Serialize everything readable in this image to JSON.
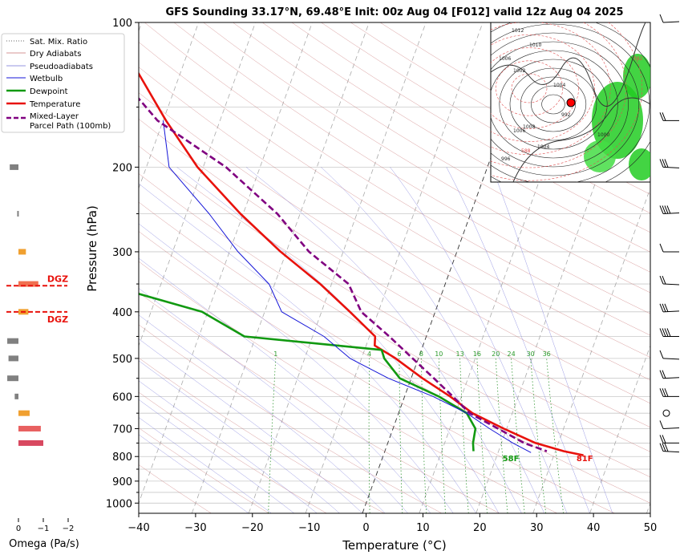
{
  "chart_data": {
    "type": "line",
    "title": "GFS Sounding 33.17°N, 69.48°E Init: 00z Aug 04 [F012] valid 12z Aug 04 2025",
    "xlabel": "Temperature (°C)",
    "ylabel": "Pressure (hPa)",
    "xlim": [
      -40,
      50
    ],
    "ylim": [
      1050,
      100
    ],
    "y_scale": "log",
    "x_ticks": [
      "−40",
      "−30",
      "−20",
      "−10",
      "0",
      "10",
      "20",
      "30",
      "40",
      "50"
    ],
    "y_ticks": [
      "100",
      "200",
      "300",
      "400",
      "500",
      "600",
      "700",
      "800",
      "900",
      "1000"
    ],
    "skew": true,
    "grid": true,
    "legend_position": "top-left",
    "legend": [
      "Sat. Mix. Ratio",
      "Dry Adiabats",
      "Pseudoadiabats",
      "Wetbulb",
      "Dewpoint",
      "Temperature",
      "Mixed-Layer\nParcel Path (100mb)"
    ],
    "mixing_ratio_labels": [
      "1",
      "4",
      "6",
      "8",
      "10",
      "13",
      "16",
      "20",
      "24",
      "30",
      "36"
    ],
    "series": [
      {
        "name": "Temperature",
        "color": "#e8120c",
        "points": [
          [
            100,
            -75.8
          ],
          [
            160,
            -59.5
          ],
          [
            200,
            -51
          ],
          [
            250,
            -40.5
          ],
          [
            300,
            -31
          ],
          [
            350,
            -22
          ],
          [
            400,
            -15
          ],
          [
            450,
            -9
          ],
          [
            470,
            -8.5
          ],
          [
            500,
            -4
          ],
          [
            550,
            2
          ],
          [
            600,
            8
          ],
          [
            650,
            13
          ],
          [
            700,
            19.5
          ],
          [
            750,
            26
          ],
          [
            780,
            31.5
          ],
          [
            795,
            35.2
          ]
        ]
      },
      {
        "name": "Dewpoint",
        "color": "#119911",
        "points": [
          [
            100,
            -87
          ],
          [
            160,
            -82
          ],
          [
            200,
            -70
          ],
          [
            250,
            -67
          ],
          [
            300,
            -57
          ],
          [
            350,
            -60
          ],
          [
            400,
            -41
          ],
          [
            450,
            -32
          ],
          [
            480,
            -7
          ],
          [
            500,
            -6
          ],
          [
            550,
            -2
          ],
          [
            600,
            6
          ],
          [
            650,
            12
          ],
          [
            700,
            14.5
          ],
          [
            750,
            15
          ],
          [
            780,
            15.6
          ]
        ]
      },
      {
        "name": "Wetbulb",
        "color": "#1515d8",
        "points": [
          [
            160,
            -60
          ],
          [
            200,
            -56
          ],
          [
            250,
            -46
          ],
          [
            300,
            -38.5
          ],
          [
            350,
            -31
          ],
          [
            400,
            -27
          ],
          [
            450,
            -18
          ],
          [
            500,
            -12
          ],
          [
            550,
            -4
          ],
          [
            600,
            5
          ],
          [
            650,
            12
          ],
          [
            700,
            17
          ],
          [
            750,
            22
          ],
          [
            785,
            25.8
          ]
        ]
      },
      {
        "name": "Mixed-Layer Parcel Path (100mb)",
        "color": "#800080",
        "dashed": true,
        "points": [
          [
            100,
            -82
          ],
          [
            160,
            -61
          ],
          [
            200,
            -46
          ],
          [
            250,
            -34
          ],
          [
            300,
            -26
          ],
          [
            350,
            -17
          ],
          [
            400,
            -13
          ],
          [
            450,
            -6.5
          ],
          [
            500,
            -1
          ],
          [
            550,
            4
          ],
          [
            600,
            8.5
          ],
          [
            650,
            12.5
          ],
          [
            700,
            18.5
          ],
          [
            750,
            24
          ],
          [
            780,
            28.5
          ]
        ]
      }
    ],
    "surface_labels": [
      {
        "text": "58F",
        "color": "#119911",
        "temperature": 22.6,
        "pressure": 806
      },
      {
        "text": "81F",
        "color": "#e8120c",
        "temperature": 35.6,
        "pressure": 806
      }
    ],
    "dgz_labels": [
      "DGZ",
      "DGZ"
    ],
    "dgz_pressures": [
      353,
      400
    ],
    "omega": {
      "label": "Omega (Pa/s)",
      "ticks": [
        "0",
        "−1",
        "−2"
      ],
      "bars": [
        {
          "pressure": 160,
          "value": 0.35,
          "color": "#808080"
        },
        {
          "pressure": 200,
          "value": 0.35,
          "color": "#808080"
        },
        {
          "pressure": 250,
          "value": 0.05,
          "color": "#808080"
        },
        {
          "pressure": 300,
          "value": -0.3,
          "color": "#f0a030"
        },
        {
          "pressure": 350,
          "value": -0.8,
          "color": "#f07050"
        },
        {
          "pressure": 400,
          "value": -0.4,
          "color": "#f0a030"
        },
        {
          "pressure": 460,
          "value": 0.45,
          "color": "#808080"
        },
        {
          "pressure": 500,
          "value": 0.4,
          "color": "#808080"
        },
        {
          "pressure": 550,
          "value": 0.45,
          "color": "#808080"
        },
        {
          "pressure": 600,
          "value": 0.15,
          "color": "#808080"
        },
        {
          "pressure": 650,
          "value": -0.45,
          "color": "#f0a030"
        },
        {
          "pressure": 700,
          "value": -0.9,
          "color": "#e86060"
        },
        {
          "pressure": 750,
          "value": -1.0,
          "color": "#d84860"
        }
      ]
    },
    "wind_barbs_pressures": [
      100,
      160,
      200,
      250,
      300,
      350,
      400,
      450,
      500,
      550,
      600,
      650,
      700,
      750,
      780
    ],
    "inset_map_contour_labels": [
      "1012",
      "1010",
      "1006",
      "1002",
      "1004",
      "1008",
      "996",
      "992",
      "1000",
      "1004",
      "1006",
      "582",
      "588"
    ]
  }
}
